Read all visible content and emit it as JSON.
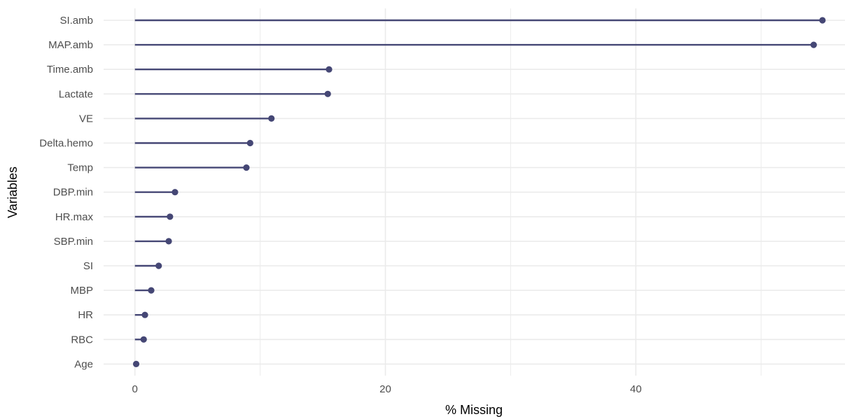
{
  "chart_data": {
    "type": "lollipop",
    "xlabel": "% Missing",
    "ylabel": "Variables",
    "xlim": [
      -2.5,
      56.7
    ],
    "x_ticks": [
      0,
      20,
      40
    ],
    "grid": true,
    "legend": "none",
    "categories": [
      "SI.amb",
      "MAP.amb",
      "Time.amb",
      "Lactate",
      "VE",
      "Delta.hemo",
      "Temp",
      "DBP.min",
      "HR.max",
      "SBP.min",
      "SI",
      "MBP",
      "HR",
      "RBC",
      "Age"
    ],
    "values": [
      54.9,
      54.2,
      15.5,
      15.4,
      10.9,
      9.2,
      8.9,
      3.2,
      2.8,
      2.7,
      1.9,
      1.3,
      0.8,
      0.7,
      0.1
    ],
    "colors": {
      "series": "#454775",
      "grid": "#ebebeb",
      "tick_text": "#4d4d4d",
      "axis_title": "#000000",
      "background": "#ffffff"
    }
  }
}
